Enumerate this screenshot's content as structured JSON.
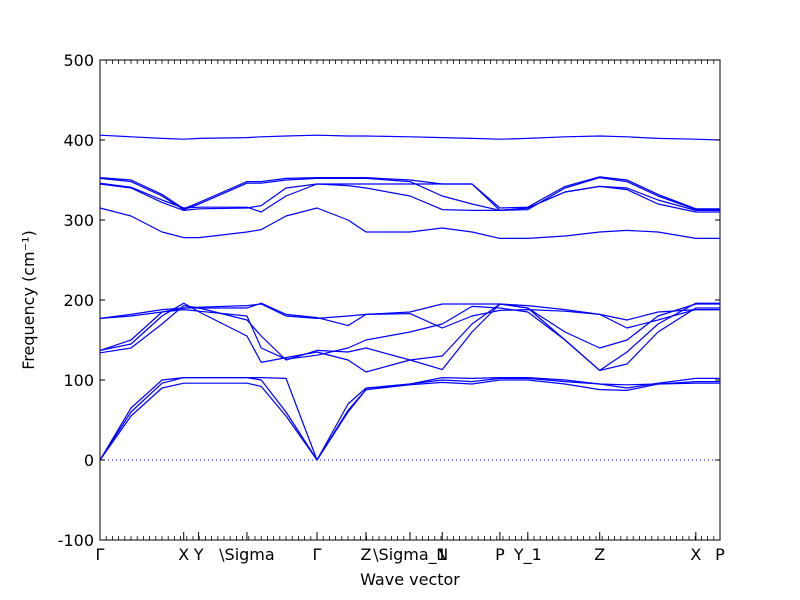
{
  "chart_data": {
    "type": "line",
    "title": "",
    "xlabel": "Wave vector",
    "ylabel": "Frequency (cm⁻¹)",
    "ylim": [
      -100,
      500
    ],
    "yticks": [
      -100,
      0,
      100,
      200,
      300,
      400,
      500
    ],
    "grid": false,
    "legend": "none",
    "zero_line": 0,
    "colors": {
      "bands": "#0000ff",
      "zero_line": "#0000ff",
      "axes": "#000000"
    },
    "xlim": [
      0,
      1
    ],
    "xticks": [
      {
        "label": "Γ",
        "pos": 0.0
      },
      {
        "label": "X",
        "pos": 0.135
      },
      {
        "label": "Y",
        "pos": 0.159
      },
      {
        "label": "\\Sigma",
        "pos": 0.237
      },
      {
        "label": "Γ",
        "pos": 0.35
      },
      {
        "label": "Z",
        "pos": 0.429
      },
      {
        "label": "\\Sigma_1",
        "pos": 0.5
      },
      {
        "label": "N",
        "pos": 0.552
      },
      {
        "label": "P",
        "pos": 0.645
      },
      {
        "label": "Y_1",
        "pos": 0.69
      },
      {
        "label": "Z",
        "pos": 0.806
      },
      {
        "label": "X",
        "pos": 0.961
      },
      {
        "label": "P",
        "pos": 1.0
      }
    ],
    "series": [
      {
        "x": [
          0,
          0.05,
          0.1,
          0.135,
          0.16,
          0.237,
          0.26,
          0.3,
          0.35,
          0.4,
          0.429,
          0.5,
          0.552,
          0.6,
          0.645,
          0.69,
          0.75,
          0.806,
          0.85,
          0.9,
          0.961,
          1.0
        ],
        "values": [
          0,
          60,
          96,
          103,
          103,
          103,
          100,
          60,
          0,
          62,
          88,
          95,
          100,
          98,
          102,
          102,
          98,
          95,
          90,
          96,
          102,
          102
        ]
      },
      {
        "x": [
          0,
          0.05,
          0.1,
          0.135,
          0.16,
          0.237,
          0.26,
          0.3,
          0.35,
          0.4,
          0.429,
          0.5,
          0.552,
          0.6,
          0.645,
          0.69,
          0.75,
          0.806,
          0.85,
          0.9,
          0.961,
          1.0
        ],
        "values": [
          0,
          55,
          90,
          96,
          96,
          96,
          92,
          55,
          0,
          60,
          88,
          94,
          97,
          95,
          100,
          100,
          95,
          88,
          87,
          95,
          98,
          98
        ]
      },
      {
        "x": [
          0,
          0.05,
          0.1,
          0.135,
          0.16,
          0.237,
          0.26,
          0.3,
          0.35,
          0.4,
          0.429,
          0.5,
          0.552,
          0.6,
          0.645,
          0.69,
          0.75,
          0.806,
          0.85,
          0.9,
          0.961,
          1.0
        ],
        "values": [
          0,
          65,
          100,
          103,
          103,
          103,
          103,
          102,
          0,
          70,
          90,
          95,
          103,
          102,
          103,
          103,
          100,
          95,
          94,
          95,
          96,
          96
        ]
      },
      {
        "x": [
          0,
          0.05,
          0.1,
          0.135,
          0.16,
          0.237,
          0.26,
          0.3,
          0.35,
          0.4,
          0.429,
          0.5,
          0.552,
          0.6,
          0.645,
          0.69,
          0.75,
          0.806,
          0.85,
          0.9,
          0.961,
          1.0
        ],
        "values": [
          134,
          140,
          170,
          193,
          190,
          175,
          155,
          125,
          137,
          135,
          140,
          125,
          113,
          160,
          195,
          190,
          150,
          112,
          135,
          170,
          196,
          196
        ]
      },
      {
        "x": [
          0,
          0.05,
          0.1,
          0.135,
          0.16,
          0.237,
          0.26,
          0.3,
          0.35,
          0.4,
          0.429,
          0.5,
          0.552,
          0.6,
          0.645,
          0.69,
          0.75,
          0.806,
          0.85,
          0.9,
          0.961,
          1.0
        ],
        "values": [
          137,
          145,
          180,
          196,
          185,
          155,
          122,
          128,
          135,
          125,
          110,
          125,
          130,
          170,
          195,
          190,
          160,
          140,
          150,
          180,
          195,
          195
        ]
      },
      {
        "x": [
          0,
          0.05,
          0.1,
          0.135,
          0.16,
          0.237,
          0.26,
          0.3,
          0.35,
          0.4,
          0.429,
          0.5,
          0.552,
          0.6,
          0.645,
          0.69,
          0.75,
          0.806,
          0.85,
          0.9,
          0.961,
          1.0
        ],
        "values": [
          137,
          150,
          185,
          188,
          186,
          180,
          140,
          126,
          131,
          140,
          150,
          160,
          170,
          192,
          190,
          185,
          150,
          112,
          120,
          160,
          190,
          190
        ]
      },
      {
        "x": [
          0,
          0.05,
          0.1,
          0.135,
          0.16,
          0.237,
          0.26,
          0.3,
          0.35,
          0.4,
          0.429,
          0.5,
          0.552,
          0.6,
          0.645,
          0.69,
          0.75,
          0.806,
          0.85,
          0.9,
          0.961,
          1.0
        ],
        "values": [
          177,
          180,
          185,
          190,
          191,
          193,
          195,
          180,
          177,
          180,
          182,
          185,
          195,
          195,
          195,
          193,
          188,
          182,
          175,
          185,
          188,
          188
        ]
      },
      {
        "x": [
          0,
          0.05,
          0.1,
          0.135,
          0.16,
          0.237,
          0.26,
          0.3,
          0.35,
          0.4,
          0.429,
          0.5,
          0.552,
          0.6,
          0.645,
          0.69,
          0.75,
          0.806,
          0.85,
          0.9,
          0.961,
          1.0
        ],
        "values": [
          177,
          182,
          188,
          190,
          190,
          190,
          196,
          182,
          178,
          168,
          182,
          183,
          165,
          180,
          187,
          188,
          186,
          182,
          165,
          175,
          188,
          188
        ]
      },
      {
        "x": [
          0,
          0.05,
          0.1,
          0.135,
          0.16,
          0.237,
          0.26,
          0.3,
          0.35,
          0.4,
          0.429,
          0.5,
          0.552,
          0.6,
          0.645,
          0.69,
          0.75,
          0.806,
          0.85,
          0.9,
          0.961,
          1.0
        ],
        "values": [
          315,
          305,
          285,
          278,
          278,
          285,
          288,
          305,
          315,
          300,
          285,
          285,
          290,
          285,
          277,
          277,
          280,
          285,
          287,
          285,
          277,
          277
        ]
      },
      {
        "x": [
          0,
          0.05,
          0.1,
          0.135,
          0.16,
          0.237,
          0.26,
          0.3,
          0.35,
          0.4,
          0.429,
          0.5,
          0.552,
          0.6,
          0.645,
          0.69,
          0.75,
          0.806,
          0.85,
          0.9,
          0.961,
          1.0
        ],
        "values": [
          345,
          340,
          322,
          312,
          314,
          315,
          318,
          340,
          345,
          343,
          340,
          330,
          313,
          312,
          312,
          315,
          335,
          342,
          338,
          320,
          310,
          310
        ]
      },
      {
        "x": [
          0,
          0.05,
          0.1,
          0.135,
          0.16,
          0.237,
          0.26,
          0.3,
          0.35,
          0.4,
          0.429,
          0.5,
          0.552,
          0.6,
          0.645,
          0.69,
          0.75,
          0.806,
          0.85,
          0.9,
          0.961,
          1.0
        ],
        "values": [
          346,
          341,
          325,
          315,
          316,
          316,
          310,
          330,
          345,
          345,
          345,
          345,
          345,
          345,
          312,
          315,
          335,
          342,
          340,
          325,
          312,
          312
        ]
      },
      {
        "x": [
          0,
          0.05,
          0.1,
          0.135,
          0.16,
          0.237,
          0.26,
          0.3,
          0.35,
          0.4,
          0.429,
          0.5,
          0.552,
          0.6,
          0.645,
          0.69,
          0.75,
          0.806,
          0.85,
          0.9,
          0.961,
          1.0
        ],
        "values": [
          352,
          348,
          330,
          313,
          320,
          346,
          346,
          350,
          352,
          352,
          352,
          348,
          330,
          320,
          312,
          313,
          340,
          353,
          348,
          330,
          313,
          313
        ]
      },
      {
        "x": [
          0,
          0.05,
          0.1,
          0.135,
          0.16,
          0.237,
          0.26,
          0.3,
          0.35,
          0.4,
          0.429,
          0.5,
          0.552,
          0.6,
          0.645,
          0.69,
          0.75,
          0.806,
          0.85,
          0.9,
          0.961,
          1.0
        ],
        "values": [
          353,
          350,
          332,
          314,
          322,
          348,
          348,
          352,
          353,
          353,
          353,
          350,
          345,
          345,
          315,
          316,
          342,
          354,
          350,
          332,
          314,
          314
        ]
      },
      {
        "x": [
          0,
          0.05,
          0.1,
          0.135,
          0.16,
          0.237,
          0.26,
          0.3,
          0.35,
          0.4,
          0.429,
          0.5,
          0.552,
          0.6,
          0.645,
          0.69,
          0.75,
          0.806,
          0.85,
          0.9,
          0.961,
          1.0
        ],
        "values": [
          406,
          404,
          402,
          401,
          402,
          403,
          404,
          405,
          406,
          405,
          405,
          404,
          403,
          402,
          401,
          402,
          404,
          405,
          404,
          402,
          401,
          400
        ]
      }
    ]
  }
}
